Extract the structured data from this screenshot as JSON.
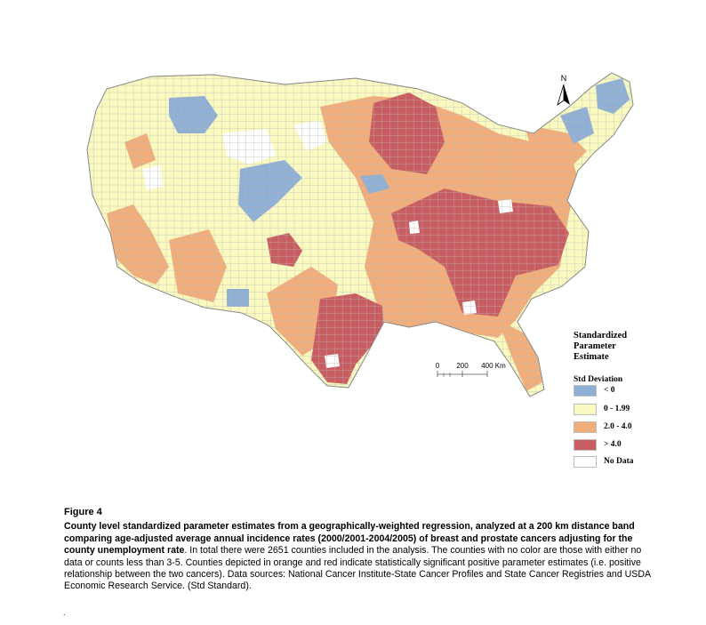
{
  "legend": {
    "title": "Standardized Parameter Estimate",
    "subtitle": "Std Deviation",
    "items": [
      {
        "label": "< 0",
        "color": "#8fb0d4"
      },
      {
        "label": "0 - 1.99",
        "color": "#fafac0"
      },
      {
        "label": "2.0 - 4.0",
        "color": "#f2ae7a"
      },
      {
        "label": "> 4.0",
        "color": "#c95e62"
      },
      {
        "label": "No Data",
        "color": "#ffffff"
      }
    ]
  },
  "scale_bar": {
    "ticks": [
      "0",
      "200",
      "400 Km"
    ]
  },
  "north_arrow": {
    "label": "N",
    "icon": "north-arrow-icon"
  },
  "caption": {
    "figure_label": "Figure 4",
    "bold_text": "County level standardized parameter estimates from a geographically-weighted regression, analyzed at a 200 km distance band comparing age-adjusted average annual incidence rates (2000/2001-2004/2005) of breast and prostate cancers adjusting for the county unemployment rate",
    "body_text": ". In total there were 2651 counties included in the analysis. The counties with no color are those with either no data or counts less than 3-5. Counties depicted in orange and red indicate statistically significant positive parameter estimates (i.e. positive relationship between the two cancers). Data sources: National Cancer Institute-State Cancer Profiles and State Cancer Registries and USDA Economic Research Service. (Std Standard).",
    "trailing_mark": "."
  }
}
